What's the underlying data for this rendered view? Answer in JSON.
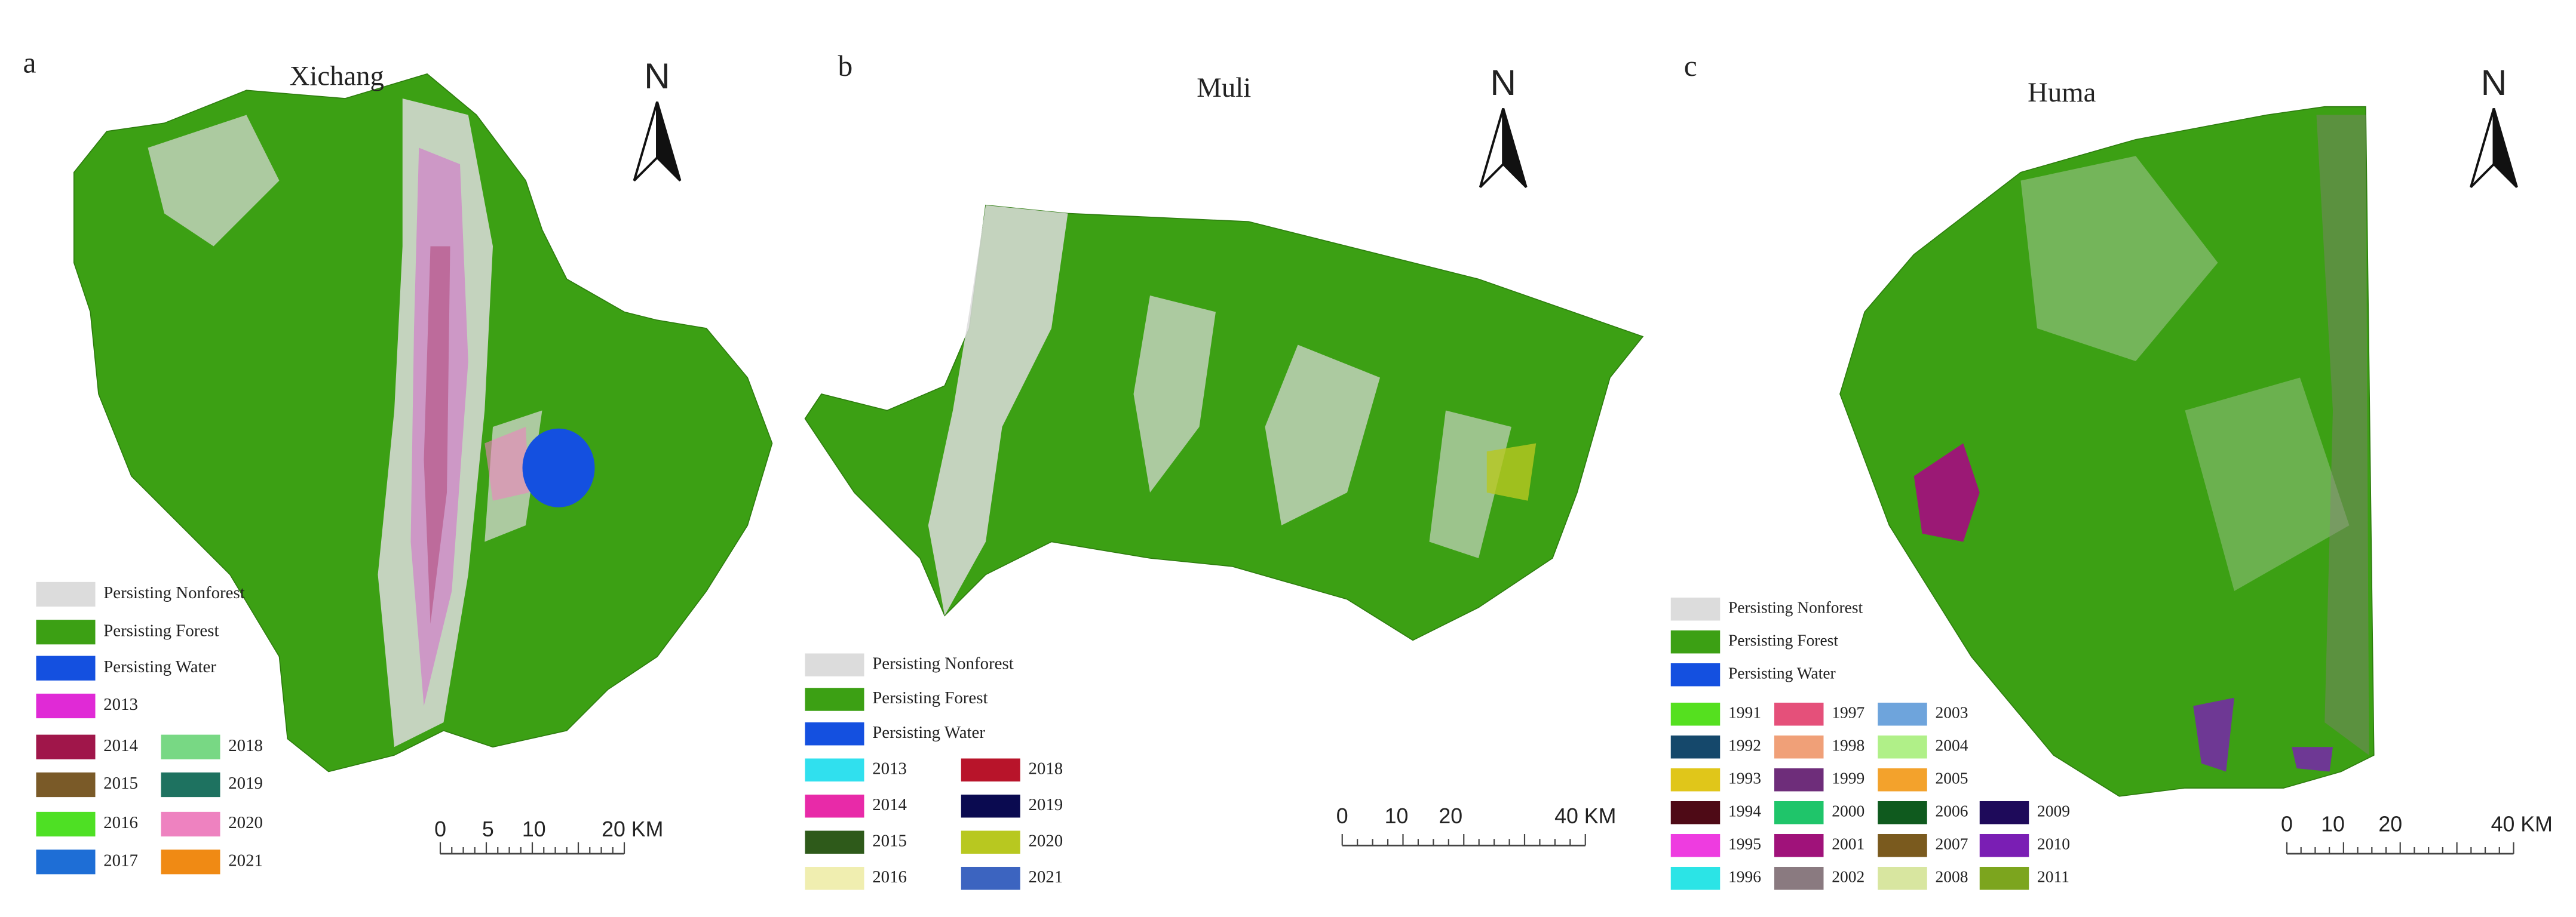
{
  "panels": [
    {
      "label": "a",
      "title": "Xichang",
      "north": "N",
      "legend": [
        {
          "label": "Persisting Nonforest",
          "color": "#dcdcdc"
        },
        {
          "label": "Persisting Forest",
          "color": "#3ca014"
        },
        {
          "label": "Persisting Water",
          "color": "#1450e0"
        },
        {
          "label": "2013",
          "color": "#e02ad6"
        },
        {
          "label": "2014",
          "color": "#a0164a"
        },
        {
          "label": "2015",
          "color": "#7a5a28"
        },
        {
          "label": "2016",
          "color": "#4ee024"
        },
        {
          "label": "2017",
          "color": "#1e6ed6"
        },
        {
          "label": "2018",
          "color": "#78d884"
        },
        {
          "label": "2019",
          "color": "#1e7260"
        },
        {
          "label": "2020",
          "color": "#ee82c0"
        },
        {
          "label": "2021",
          "color": "#f08a14"
        }
      ],
      "scale_bar": [
        "0",
        "5",
        "10",
        "20 KM"
      ]
    },
    {
      "label": "b",
      "title": "Muli",
      "north": "N",
      "legend": [
        {
          "label": "Persisting Nonforest",
          "color": "#dcdcdc"
        },
        {
          "label": "Persisting Forest",
          "color": "#3ca014"
        },
        {
          "label": "Persisting Water",
          "color": "#1450e0"
        },
        {
          "label": "2013",
          "color": "#30e0ee"
        },
        {
          "label": "2014",
          "color": "#e82aa8"
        },
        {
          "label": "2015",
          "color": "#2e5a1a"
        },
        {
          "label": "2016",
          "color": "#f0eeb0"
        },
        {
          "label": "2018",
          "color": "#b8142a"
        },
        {
          "label": "2019",
          "color": "#0a0a50"
        },
        {
          "label": "2020",
          "color": "#b8c820"
        },
        {
          "label": "2021",
          "color": "#3c64c0"
        }
      ],
      "scale_bar": [
        "0",
        "10",
        "20",
        "40 KM"
      ]
    },
    {
      "label": "c",
      "title": "Huma",
      "north": "N",
      "legend": [
        {
          "label": "Persisting Nonforest",
          "color": "#dcdcdc"
        },
        {
          "label": "Persisting Forest",
          "color": "#3ca014"
        },
        {
          "label": "Persisting Water",
          "color": "#1450e0"
        },
        {
          "label": "1991",
          "color": "#55e01f"
        },
        {
          "label": "1992",
          "color": "#15486b"
        },
        {
          "label": "1993",
          "color": "#e0c61a"
        },
        {
          "label": "1994",
          "color": "#4e0a16"
        },
        {
          "label": "1995",
          "color": "#ee3ce0"
        },
        {
          "label": "1996",
          "color": "#2be4e6"
        },
        {
          "label": "1997",
          "color": "#e5507a"
        },
        {
          "label": "1998",
          "color": "#f0a078"
        },
        {
          "label": "1999",
          "color": "#6e2d7a"
        },
        {
          "label": "2000",
          "color": "#1fc56a"
        },
        {
          "label": "2001",
          "color": "#a0127a"
        },
        {
          "label": "2002",
          "color": "#8a7a80"
        },
        {
          "label": "2003",
          "color": "#6ea4dc"
        },
        {
          "label": "2004",
          "color": "#b0f088"
        },
        {
          "label": "2005",
          "color": "#f3a22c"
        },
        {
          "label": "2006",
          "color": "#0f5a1e"
        },
        {
          "label": "2007",
          "color": "#7a5a1e"
        },
        {
          "label": "2008",
          "color": "#d8e6a0"
        },
        {
          "label": "2009",
          "color": "#1e0a5a"
        },
        {
          "label": "2010",
          "color": "#7a1eb4"
        },
        {
          "label": "2011",
          "color": "#7ca51e"
        }
      ],
      "scale_bar": [
        "0",
        "10",
        "20",
        "40 KM"
      ]
    }
  ]
}
